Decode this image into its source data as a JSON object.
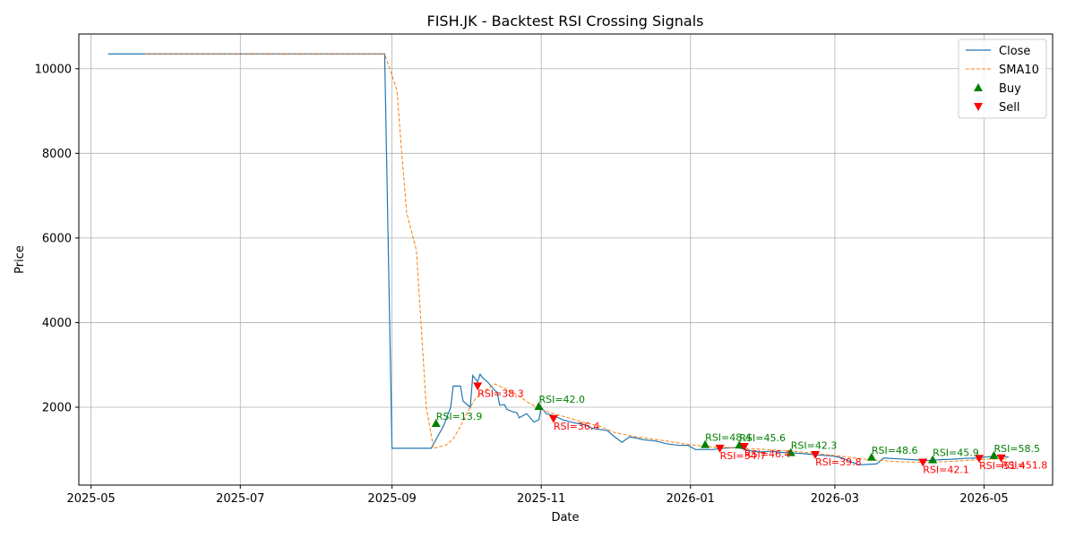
{
  "chart_data": {
    "type": "line",
    "title": "FISH.JK - Backtest RSI Crossing Signals",
    "xlabel": "Date",
    "ylabel": "Price",
    "xlim": [
      "2025-04-26",
      "2026-05-29"
    ],
    "ylim": [
      160,
      10820
    ],
    "grid": true,
    "legend_position": "top-right",
    "x_ticks": [
      "2025-05",
      "2025-07",
      "2025-09",
      "2025-11",
      "2026-01",
      "2026-03",
      "2026-05"
    ],
    "y_ticks": [
      2000,
      4000,
      6000,
      8000,
      10000
    ],
    "colors": {
      "close": "#1f77b4",
      "sma": "#ff7f0e",
      "buy": "#008000",
      "sell": "#ff0000"
    },
    "series": [
      {
        "name": "Close",
        "style": "solid",
        "points": [
          [
            "2025-05-08",
            10350
          ],
          [
            "2025-06-15",
            10350
          ],
          [
            "2025-07-20",
            10350
          ],
          [
            "2025-08-29",
            10350
          ],
          [
            "2025-09-01",
            1030
          ],
          [
            "2025-09-17",
            1030
          ],
          [
            "2025-09-22",
            1550
          ],
          [
            "2025-09-25",
            2000
          ],
          [
            "2025-09-26",
            2500
          ],
          [
            "2025-09-29",
            2500
          ],
          [
            "2025-09-30",
            2150
          ],
          [
            "2025-10-03",
            2000
          ],
          [
            "2025-10-04",
            2750
          ],
          [
            "2025-10-06",
            2600
          ],
          [
            "2025-10-07",
            2780
          ],
          [
            "2025-10-08",
            2700
          ],
          [
            "2025-10-10",
            2600
          ],
          [
            "2025-10-13",
            2400
          ],
          [
            "2025-10-14",
            2350
          ],
          [
            "2025-10-15",
            2050
          ],
          [
            "2025-10-17",
            2060
          ],
          [
            "2025-10-18",
            1950
          ],
          [
            "2025-10-20",
            1900
          ],
          [
            "2025-10-22",
            1870
          ],
          [
            "2025-10-23",
            1750
          ],
          [
            "2025-10-26",
            1850
          ],
          [
            "2025-10-29",
            1650
          ],
          [
            "2025-10-31",
            1700
          ],
          [
            "2025-11-01",
            2000
          ],
          [
            "2025-11-03",
            1850
          ],
          [
            "2025-11-06",
            1800
          ],
          [
            "2025-11-10",
            1700
          ],
          [
            "2025-11-14",
            1640
          ],
          [
            "2025-11-19",
            1580
          ],
          [
            "2025-11-22",
            1500
          ],
          [
            "2025-11-28",
            1450
          ],
          [
            "2025-12-01",
            1300
          ],
          [
            "2025-12-04",
            1170
          ],
          [
            "2025-12-07",
            1300
          ],
          [
            "2025-12-10",
            1270
          ],
          [
            "2025-12-13",
            1230
          ],
          [
            "2025-12-18",
            1200
          ],
          [
            "2025-12-22",
            1140
          ],
          [
            "2025-12-27",
            1100
          ],
          [
            "2025-12-31",
            1100
          ],
          [
            "2026-01-03",
            1000
          ],
          [
            "2026-01-10",
            1000
          ],
          [
            "2026-01-14",
            1030
          ],
          [
            "2026-01-20",
            1050
          ],
          [
            "2026-01-25",
            980
          ],
          [
            "2026-01-29",
            940
          ],
          [
            "2026-02-03",
            960
          ],
          [
            "2026-02-08",
            930
          ],
          [
            "2026-02-12",
            920
          ],
          [
            "2026-02-17",
            900
          ],
          [
            "2026-02-22",
            870
          ],
          [
            "2026-02-28",
            850
          ],
          [
            "2026-03-04",
            800
          ],
          [
            "2026-03-08",
            700
          ],
          [
            "2026-03-11",
            640
          ],
          [
            "2026-03-18",
            660
          ],
          [
            "2026-03-21",
            800
          ],
          [
            "2026-03-27",
            780
          ],
          [
            "2026-04-02",
            760
          ],
          [
            "2026-04-08",
            740
          ],
          [
            "2026-04-13",
            760
          ],
          [
            "2026-04-18",
            770
          ],
          [
            "2026-04-23",
            790
          ],
          [
            "2026-04-28",
            800
          ],
          [
            "2026-05-03",
            830
          ],
          [
            "2026-05-08",
            850
          ],
          [
            "2026-05-11",
            820
          ]
        ]
      },
      {
        "name": "SMA10",
        "style": "dashed",
        "points": [
          [
            "2025-05-23",
            10350
          ],
          [
            "2025-07-20",
            10350
          ],
          [
            "2025-08-29",
            10350
          ],
          [
            "2025-09-03",
            9500
          ],
          [
            "2025-09-05",
            8000
          ],
          [
            "2025-09-07",
            6600
          ],
          [
            "2025-09-11",
            5700
          ],
          [
            "2025-09-15",
            2000
          ],
          [
            "2025-09-18",
            1030
          ],
          [
            "2025-09-23",
            1100
          ],
          [
            "2025-09-26",
            1250
          ],
          [
            "2025-09-29",
            1550
          ],
          [
            "2025-10-02",
            1900
          ],
          [
            "2025-10-05",
            2200
          ],
          [
            "2025-10-09",
            2400
          ],
          [
            "2025-10-13",
            2550
          ],
          [
            "2025-10-17",
            2450
          ],
          [
            "2025-10-22",
            2300
          ],
          [
            "2025-10-27",
            2100
          ],
          [
            "2025-11-01",
            1950
          ],
          [
            "2025-11-06",
            1850
          ],
          [
            "2025-11-12",
            1750
          ],
          [
            "2025-11-18",
            1650
          ],
          [
            "2025-11-25",
            1550
          ],
          [
            "2025-12-01",
            1400
          ],
          [
            "2025-12-10",
            1300
          ],
          [
            "2025-12-20",
            1220
          ],
          [
            "2025-12-31",
            1120
          ],
          [
            "2026-01-10",
            1060
          ],
          [
            "2026-01-20",
            1040
          ],
          [
            "2026-02-01",
            1000
          ],
          [
            "2026-02-12",
            960
          ],
          [
            "2026-02-22",
            900
          ],
          [
            "2026-03-04",
            840
          ],
          [
            "2026-03-15",
            760
          ],
          [
            "2026-03-28",
            710
          ],
          [
            "2026-04-08",
            700
          ],
          [
            "2026-04-18",
            720
          ],
          [
            "2026-04-28",
            760
          ],
          [
            "2026-05-11",
            790
          ]
        ]
      }
    ],
    "signals": [
      {
        "type": "Buy",
        "x": "2025-09-19",
        "y": 1620,
        "label": "RSI=13.9"
      },
      {
        "type": "Sell",
        "x": "2025-10-06",
        "y": 2500,
        "label": "RSI=38.3"
      },
      {
        "type": "Buy",
        "x": "2025-10-31",
        "y": 2020,
        "label": "RSI=42.0"
      },
      {
        "type": "Sell",
        "x": "2025-11-06",
        "y": 1730,
        "label": "RSI=36.4"
      },
      {
        "type": "Buy",
        "x": "2026-01-07",
        "y": 1120,
        "label": "RSI=48.4"
      },
      {
        "type": "Sell",
        "x": "2026-01-13",
        "y": 1030,
        "label": "RSI=34.7"
      },
      {
        "type": "Buy",
        "x": "2026-01-21",
        "y": 1110,
        "label": "RSI=45.6"
      },
      {
        "type": "Sell",
        "x": "2026-01-23",
        "y": 1070,
        "label": "RSI=46.4"
      },
      {
        "type": "Buy",
        "x": "2026-02-11",
        "y": 930,
        "label": "RSI=42.3"
      },
      {
        "type": "Sell",
        "x": "2026-02-21",
        "y": 880,
        "label": "RSI=39.8"
      },
      {
        "type": "Buy",
        "x": "2026-03-16",
        "y": 820,
        "label": "RSI=48.6"
      },
      {
        "type": "Sell",
        "x": "2026-04-06",
        "y": 700,
        "label": "RSI=42.1"
      },
      {
        "type": "Buy",
        "x": "2026-04-10",
        "y": 760,
        "label": "RSI=45.9"
      },
      {
        "type": "Sell",
        "x": "2026-04-29",
        "y": 790,
        "label": "RSI=51.4"
      },
      {
        "type": "Buy",
        "x": "2026-05-05",
        "y": 860,
        "label": "RSI=58.5"
      },
      {
        "type": "Sell",
        "x": "2026-05-08",
        "y": 800,
        "label": "RSI=51.8"
      }
    ],
    "legend": [
      "Close",
      "SMA10",
      "Buy",
      "Sell"
    ]
  }
}
